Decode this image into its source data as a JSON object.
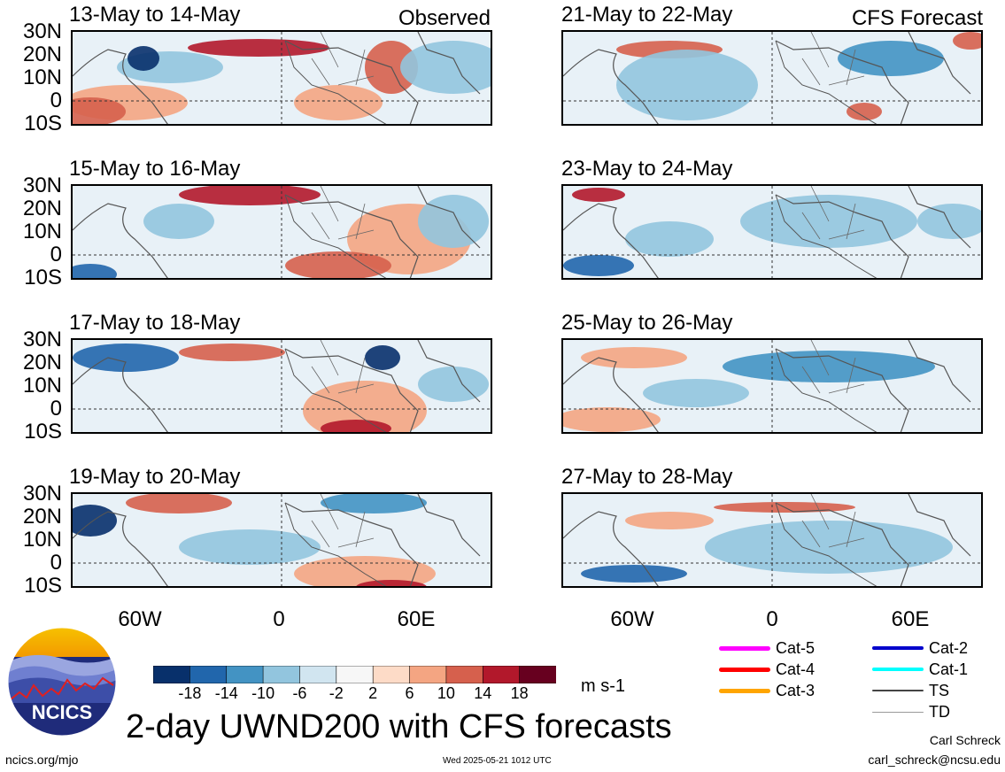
{
  "observed_label": "Observed",
  "forecast_label": "CFS Forecast",
  "panels_left": [
    {
      "title": "13-May to 14-May"
    },
    {
      "title": "15-May to 16-May"
    },
    {
      "title": "17-May to 18-May"
    },
    {
      "title": "19-May to 20-May"
    }
  ],
  "panels_right": [
    {
      "title": "21-May to 22-May"
    },
    {
      "title": "23-May to 24-May"
    },
    {
      "title": "25-May to 26-May"
    },
    {
      "title": "27-May to 28-May"
    }
  ],
  "lat_labels": [
    "30N",
    "20N",
    "10N",
    "0",
    "10S"
  ],
  "lon_labels": [
    "60W",
    "0",
    "60E"
  ],
  "colorbar": {
    "ticks": [
      "-18",
      "-14",
      "-10",
      "-6",
      "-2",
      "2",
      "6",
      "10",
      "14",
      "18"
    ],
    "colors": [
      "#08306b",
      "#2166ac",
      "#4393c3",
      "#92c5de",
      "#d1e5f0",
      "#f7f7f7",
      "#fddbc7",
      "#f4a582",
      "#d6604d",
      "#b2182b",
      "#67001f"
    ],
    "units": "m s-1"
  },
  "legend": [
    {
      "label": "Cat-5",
      "color": "#ff00ff",
      "weight": 5
    },
    {
      "label": "Cat-4",
      "color": "#ff0000",
      "weight": 5
    },
    {
      "label": "Cat-3",
      "color": "#ffa500",
      "weight": 5
    },
    {
      "label": "Cat-2",
      "color": "#0000cc",
      "weight": 4
    },
    {
      "label": "Cat-1",
      "color": "#00ffff",
      "weight": 4
    },
    {
      "label": "TS",
      "color": "#444444",
      "weight": 2
    },
    {
      "label": "TD",
      "color": "#999999",
      "weight": 1
    }
  ],
  "logo_text": "NCICS",
  "title": "2-day UWND200 with CFS forecasts",
  "footer_left": "ncics.org/mjo",
  "timestamp": "Wed 2025-05-21 1012 UTC",
  "author": "Carl Schreck",
  "email": "carl_schreck@ncsu.edu"
}
